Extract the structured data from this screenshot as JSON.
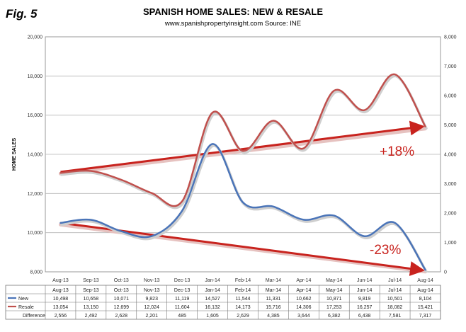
{
  "figure_label": "Fig. 5",
  "title": "SPANISH HOME SALES: NEW & RESALE",
  "subtitle": "www.spanishpropertyinsight.com Source: INE",
  "chart_data": {
    "type": "line",
    "categories": [
      "Aug-13",
      "Sep-13",
      "Oct-13",
      "Nov-13",
      "Dec-13",
      "Jan-14",
      "Feb-14",
      "Mar-14",
      "Apr-14",
      "May-14",
      "Jun-14",
      "Jul-14",
      "Aug-14"
    ],
    "ylabel": "HOME SALES",
    "ylim": [
      8000,
      20000
    ],
    "y_ticks": [
      "8,000",
      "10,000",
      "12,000",
      "14,000",
      "16,000",
      "18,000",
      "20,000"
    ],
    "y2lim": [
      0,
      8000
    ],
    "y2_ticks": [
      "0",
      "1,000",
      "2,000",
      "3,000",
      "4,000",
      "5,000",
      "6,000",
      "7,000",
      "8,000"
    ],
    "series": [
      {
        "name": "New",
        "color": "#4a74b8",
        "values": [
          10498,
          10658,
          10071,
          9823,
          11119,
          14527,
          11544,
          11331,
          10662,
          10871,
          9819,
          10501,
          8104
        ]
      },
      {
        "name": "Resale",
        "color": "#c0504d",
        "values": [
          13054,
          13150,
          12699,
          12024,
          11604,
          16132,
          14173,
          15716,
          14306,
          17253,
          16257,
          18082,
          15421
        ]
      }
    ],
    "difference": [
      2556,
      2492,
      2628,
      2201,
      485,
      1605,
      2629,
      4385,
      3644,
      6382,
      6438,
      7581,
      7317
    ],
    "table_labels": {
      "new": "New",
      "resale": "Resale",
      "difference": "Difference"
    },
    "table": {
      "new": [
        "10,498",
        "10,658",
        "10,071",
        "9,823",
        "11,119",
        "14,527",
        "11,544",
        "11,331",
        "10,662",
        "10,871",
        "9,819",
        "10,501",
        "8,104"
      ],
      "resale": [
        "13,054",
        "13,150",
        "12,699",
        "12,024",
        "11,604",
        "16,132",
        "14,173",
        "15,716",
        "14,306",
        "17,253",
        "16,257",
        "18,082",
        "15,421"
      ],
      "difference": [
        "2,556",
        "2,492",
        "2,628",
        "2,201",
        "485",
        "1,605",
        "2,629",
        "4,385",
        "3,644",
        "6,382",
        "6,438",
        "7,581",
        "7,317"
      ]
    },
    "annotations": [
      {
        "text": "+18%",
        "from_value": 13100,
        "to_value": 15400,
        "color": "#c8231e"
      },
      {
        "text": "-23%",
        "from_value": 10500,
        "to_value": 8100,
        "color": "#c8231e"
      }
    ]
  }
}
